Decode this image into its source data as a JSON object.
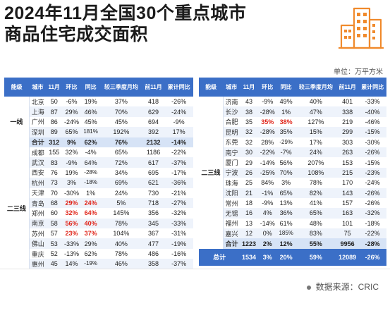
{
  "title": {
    "line1": "2024年11月全国30个重点城市",
    "line2": "商品住宅成交面积"
  },
  "unit": "单位：万平方米",
  "source": "数据来源：CRIC",
  "icon": "building-icon",
  "colors": {
    "header": "#3b6fc7",
    "highlight": "#e0261b",
    "row_alt": "#eef3fb",
    "total_row": "#d6e3f6"
  },
  "left": {
    "headers": [
      "能级",
      "城市",
      "11月",
      "环比",
      "同比",
      "较三季度月均",
      "前11月",
      "累计同比"
    ],
    "groups": [
      {
        "level": "一线",
        "rows": [
          {
            "cells": [
              "北京",
              "50",
              "-6%",
              "19%",
              "37%",
              "418",
              "-26%"
            ],
            "red": []
          },
          {
            "cells": [
              "上海",
              "87",
              "29%",
              "46%",
              "70%",
              "629",
              "-24%"
            ],
            "red": []
          },
          {
            "cells": [
              "广州",
              "86",
              "-24%",
              "45%",
              "45%",
              "694",
              "-9%"
            ],
            "red": []
          },
          {
            "cells": [
              "深圳",
              "89",
              "65%",
              "181%",
              "192%",
              "392",
              "17%"
            ],
            "red": []
          },
          {
            "cells": [
              "合计",
              "312",
              "9%",
              "62%",
              "76%",
              "2132",
              "-14%"
            ],
            "red": [],
            "total": true
          }
        ]
      },
      {
        "level": "二三线",
        "rows": [
          {
            "cells": [
              "成都",
              "155",
              "32%",
              "-4%",
              "65%",
              "1186",
              "-22%"
            ],
            "red": []
          },
          {
            "cells": [
              "武汉",
              "83",
              "-9%",
              "64%",
              "72%",
              "617",
              "-37%"
            ],
            "red": []
          },
          {
            "cells": [
              "西安",
              "76",
              "19%",
              "-28%",
              "34%",
              "695",
              "-17%"
            ],
            "red": []
          },
          {
            "cells": [
              "杭州",
              "73",
              "3%",
              "-18%",
              "69%",
              "621",
              "-36%"
            ],
            "red": []
          },
          {
            "cells": [
              "天津",
              "70",
              "-30%",
              "1%",
              "24%",
              "730",
              "-21%"
            ],
            "red": []
          },
          {
            "cells": [
              "青岛",
              "68",
              "29%",
              "24%",
              "5%",
              "718",
              "-27%"
            ],
            "red": [
              2,
              3
            ]
          },
          {
            "cells": [
              "郑州",
              "60",
              "32%",
              "64%",
              "145%",
              "356",
              "-32%"
            ],
            "red": [
              2,
              3
            ]
          },
          {
            "cells": [
              "南京",
              "58",
              "56%",
              "40%",
              "78%",
              "345",
              "-33%"
            ],
            "red": [
              2,
              3
            ]
          },
          {
            "cells": [
              "苏州",
              "57",
              "23%",
              "37%",
              "104%",
              "367",
              "-31%"
            ],
            "red": [
              2,
              3
            ]
          },
          {
            "cells": [
              "佛山",
              "53",
              "-33%",
              "29%",
              "40%",
              "477",
              "-19%"
            ],
            "red": []
          },
          {
            "cells": [
              "重庆",
              "52",
              "-13%",
              "62%",
              "78%",
              "486",
              "-16%"
            ],
            "red": []
          },
          {
            "cells": [
              "惠州",
              "45",
              "14%",
              "-19%",
              "46%",
              "358",
              "-37%"
            ],
            "red": []
          }
        ]
      }
    ]
  },
  "right": {
    "headers": [
      "能级",
      "城市",
      "11月",
      "环比",
      "同比",
      "较三季度月均",
      "前11月",
      "累计同比"
    ],
    "level": "二三线",
    "rows": [
      {
        "cells": [
          "济南",
          "43",
          "-9%",
          "49%",
          "40%",
          "401",
          "-33%"
        ],
        "red": []
      },
      {
        "cells": [
          "长沙",
          "38",
          "-28%",
          "1%",
          "47%",
          "338",
          "-40%"
        ],
        "red": []
      },
      {
        "cells": [
          "合肥",
          "35",
          "35%",
          "38%",
          "127%",
          "219",
          "-46%"
        ],
        "red": [
          2,
          3
        ]
      },
      {
        "cells": [
          "昆明",
          "32",
          "-28%",
          "35%",
          "15%",
          "299",
          "-15%"
        ],
        "red": []
      },
      {
        "cells": [
          "东莞",
          "32",
          "28%",
          "-29%",
          "17%",
          "303",
          "-30%"
        ],
        "red": []
      },
      {
        "cells": [
          "南宁",
          "30",
          "-22%",
          "-7%",
          "24%",
          "263",
          "-26%"
        ],
        "red": []
      },
      {
        "cells": [
          "厦门",
          "29",
          "-14%",
          "56%",
          "207%",
          "153",
          "-15%"
        ],
        "red": []
      },
      {
        "cells": [
          "宁波",
          "26",
          "-25%",
          "70%",
          "108%",
          "215",
          "-23%"
        ],
        "red": []
      },
      {
        "cells": [
          "珠海",
          "25",
          "84%",
          "3%",
          "78%",
          "170",
          "-24%"
        ],
        "red": []
      },
      {
        "cells": [
          "沈阳",
          "21",
          "-1%",
          "65%",
          "82%",
          "143",
          "-26%"
        ],
        "red": []
      },
      {
        "cells": [
          "常州",
          "18",
          "-9%",
          "13%",
          "41%",
          "157",
          "-26%"
        ],
        "red": []
      },
      {
        "cells": [
          "无锡",
          "16",
          "4%",
          "36%",
          "65%",
          "163",
          "-32%"
        ],
        "red": []
      },
      {
        "cells": [
          "福州",
          "13",
          "-14%",
          "61%",
          "48%",
          "101",
          "-18%"
        ],
        "red": []
      },
      {
        "cells": [
          "嘉兴",
          "12",
          "0%",
          "185%",
          "83%",
          "75",
          "-22%"
        ],
        "red": []
      },
      {
        "cells": [
          "合计",
          "1223",
          "2%",
          "12%",
          "55%",
          "9956",
          "-28%"
        ],
        "red": [],
        "total": true
      }
    ],
    "grand_total": {
      "label": "总计",
      "cells": [
        "1534",
        "3%",
        "20%",
        "59%",
        "12089",
        "-26%"
      ]
    }
  }
}
